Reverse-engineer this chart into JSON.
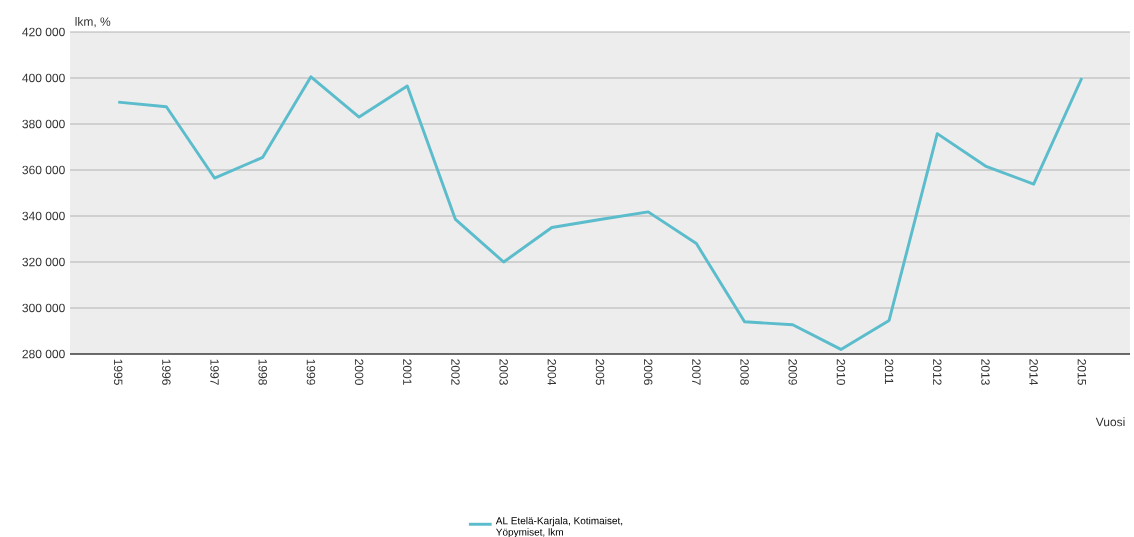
{
  "chart_data": {
    "type": "line",
    "xlabel": "Vuosi",
    "ylabel": "lkm, %",
    "categories": [
      "1995",
      "1996",
      "1997",
      "1998",
      "1999",
      "2000",
      "2001",
      "2002",
      "2003",
      "2004",
      "2005",
      "2006",
      "2007",
      "2008",
      "2009",
      "2010",
      "2011",
      "2012",
      "2013",
      "2014",
      "2015"
    ],
    "series": [
      {
        "name": "AL Etelä-Karjala, Kotimaiset, Yöpymiset, lkm",
        "color": "#5bbccc",
        "values": [
          389500,
          387500,
          356500,
          365500,
          400500,
          383000,
          396500,
          338500,
          320000,
          335000,
          338500,
          341800,
          328000,
          294000,
          292700,
          282000,
          294600,
          375800,
          361700,
          353900,
          400000
        ]
      }
    ],
    "ylim": [
      280000,
      420000
    ],
    "yticks": [
      {
        "value": 280000,
        "label": "280 000"
      },
      {
        "value": 300000,
        "label": "300 000"
      },
      {
        "value": 320000,
        "label": "320 000"
      },
      {
        "value": 340000,
        "label": "340 000"
      },
      {
        "value": 360000,
        "label": "360 000"
      },
      {
        "value": 380000,
        "label": "380 000"
      },
      {
        "value": 400000,
        "label": "400 000"
      },
      {
        "value": 420000,
        "label": "420 000"
      }
    ],
    "grid": "y",
    "legend": "bottom"
  }
}
